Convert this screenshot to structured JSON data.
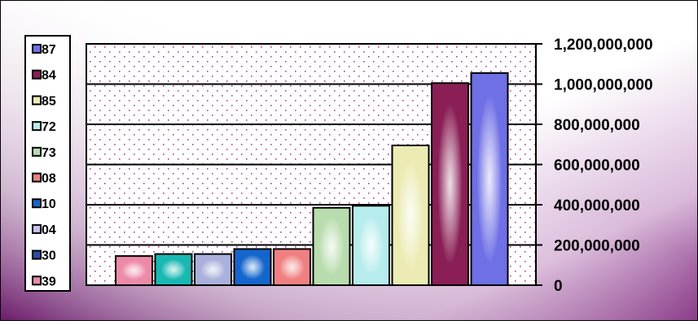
{
  "chart_data": {
    "type": "bar",
    "legend": {
      "placement": "left",
      "entries": [
        {
          "label": "87",
          "color": "#6f6fe6"
        },
        {
          "label": "84",
          "color": "#8a1f55"
        },
        {
          "label": "85",
          "color": "#ecebb4"
        },
        {
          "label": "72",
          "color": "#b6ecec"
        },
        {
          "label": "73",
          "color": "#b9dcae"
        },
        {
          "label": "08",
          "color": "#f08080"
        },
        {
          "label": "10",
          "color": "#1466cc"
        },
        {
          "label": "04",
          "color": "#c8c0ee"
        },
        {
          "label": "30",
          "color": "#2a4fa0"
        },
        {
          "label": "39",
          "color": "#ec8aa8"
        }
      ]
    },
    "series": [
      {
        "values": [
          145000000,
          155000000,
          155000000,
          180000000,
          180000000,
          385000000,
          395000000,
          695000000,
          1005000000,
          1055000000
        ]
      }
    ],
    "bar_colors": [
      "#ec8aa8",
      "#19b8b2",
      "#aab0dc",
      "#1466cc",
      "#f08080",
      "#b9dcae",
      "#b6ecec",
      "#ecebb4",
      "#8a1f55",
      "#6f6fe6"
    ],
    "y_axis": {
      "ticks": [
        "0",
        "200,000,000",
        "400,000,000",
        "600,000,000",
        "800,000,000",
        "1,000,000,000",
        "1,200,000,000"
      ],
      "ylim": [
        0,
        1200000000
      ],
      "side": "right"
    },
    "grid": true,
    "plot_pattern": "pink-dots",
    "background_colors": [
      "#7a1f78",
      "#ffffff"
    ]
  }
}
